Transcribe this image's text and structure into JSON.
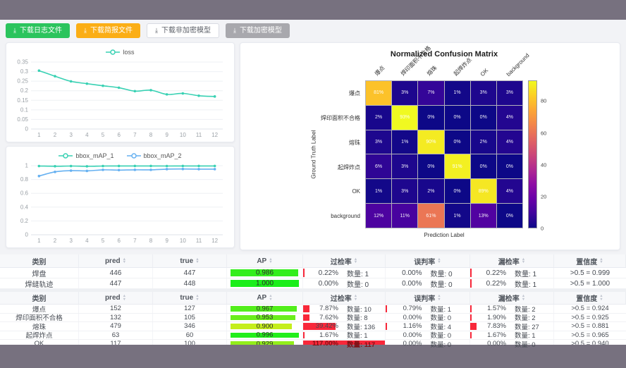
{
  "toolbar": {
    "buttons": [
      {
        "label": "下载日志文件",
        "style": "green",
        "icon": "download-icon"
      },
      {
        "label": "下载简报文件",
        "style": "orange",
        "icon": "download-icon"
      },
      {
        "label": "下载非加密模型",
        "style": "plain",
        "icon": "download-icon"
      },
      {
        "label": "下载加密模型",
        "style": "gray",
        "icon": "download-icon"
      }
    ]
  },
  "chart_data": [
    {
      "id": "loss",
      "type": "line",
      "x": [
        "1",
        "2",
        "3",
        "4",
        "5",
        "6",
        "7",
        "8",
        "9",
        "10",
        "11",
        "12"
      ],
      "series": [
        {
          "name": "loss",
          "color": "#38d1b3",
          "values": [
            0.305,
            0.276,
            0.249,
            0.237,
            0.226,
            0.216,
            0.198,
            0.203,
            0.181,
            0.186,
            0.174,
            0.17
          ]
        }
      ],
      "ytick_values": [
        0,
        0.05,
        0.1,
        0.15,
        0.2,
        0.25,
        0.3,
        0.35
      ],
      "ytick_labels": [
        "0",
        "0.05",
        "0.1",
        "0.15",
        "0.2",
        "0.25",
        "0.3",
        "0.35"
      ],
      "ymax": 0.35,
      "grid": true,
      "legend_position": "top"
    },
    {
      "id": "bbox_map",
      "type": "line",
      "x": [
        "1",
        "2",
        "3",
        "4",
        "5",
        "6",
        "7",
        "8",
        "9",
        "10",
        "11",
        "12"
      ],
      "series": [
        {
          "name": "bbox_mAP_1",
          "color": "#38d1b3",
          "values": [
            0.995,
            0.992,
            0.995,
            0.991,
            0.995,
            0.996,
            0.996,
            0.996,
            0.995,
            0.996,
            0.996,
            0.996
          ]
        },
        {
          "name": "bbox_mAP_2",
          "color": "#66b1f1",
          "values": [
            0.85,
            0.91,
            0.928,
            0.924,
            0.94,
            0.936,
            0.94,
            0.94,
            0.95,
            0.952,
            0.95,
            0.95
          ]
        }
      ],
      "ytick_values": [
        0,
        0.2,
        0.4,
        0.6,
        0.8,
        1
      ],
      "ytick_labels": [
        "0",
        "0.2",
        "0.4",
        "0.6",
        "0.8",
        "1"
      ],
      "ymax": 1,
      "grid": true,
      "legend_position": "top"
    },
    {
      "id": "confusion_matrix",
      "type": "heatmap",
      "title": "Normalized Confusion Matrix",
      "xlabel": "Prediction Label",
      "ylabel": "Ground Truth Label",
      "labels": [
        "爆点",
        "焊印面积不合格",
        "熔珠",
        "起焊炸点",
        "OK",
        "background"
      ],
      "matrix_pct": [
        [
          81,
          3,
          7,
          1,
          3,
          3
        ],
        [
          2,
          93,
          0,
          0,
          0,
          4
        ],
        [
          3,
          1,
          90,
          0,
          2,
          4
        ],
        [
          6,
          3,
          0,
          91,
          0,
          0
        ],
        [
          1,
          3,
          2,
          0,
          89,
          4
        ],
        [
          12,
          11,
          61,
          1,
          13,
          0
        ]
      ],
      "colorbar_ticks": [
        0,
        20,
        40,
        60,
        80
      ],
      "colormap": "plasma",
      "vmax": 93
    }
  ],
  "tables": [
    {
      "headers": [
        {
          "key": "category",
          "label": "类别",
          "sortable": false
        },
        {
          "key": "pred",
          "label": "pred",
          "sortable": true
        },
        {
          "key": "true",
          "label": "true",
          "sortable": true
        },
        {
          "key": "ap",
          "label": "AP",
          "sortable": true
        },
        {
          "key": "overkill",
          "label": "过检率",
          "sortable": true
        },
        {
          "key": "misjudge",
          "label": "误判率",
          "sortable": true
        },
        {
          "key": "miss",
          "label": "漏检率",
          "sortable": true
        },
        {
          "key": "confidence",
          "label": "置信度",
          "sortable": true
        }
      ],
      "rows": [
        {
          "name": "焊盘",
          "pred": "446",
          "true": "447",
          "ap": "0.986",
          "overkill": {
            "pct": "0.22%",
            "count": "数量: 1",
            "value": 0.22
          },
          "misjudge": {
            "pct": "0.00%",
            "count": "数量: 0",
            "value": 0
          },
          "miss": {
            "pct": "0.22%",
            "count": "数量: 1",
            "value": 0.22
          },
          "confidence": ">0.5 = 0.999"
        },
        {
          "name": "焊缝轨迹",
          "pred": "447",
          "true": "448",
          "ap": "1.000",
          "overkill": {
            "pct": "0.00%",
            "count": "数量: 0",
            "value": 0
          },
          "misjudge": {
            "pct": "0.00%",
            "count": "数量: 0",
            "value": 0
          },
          "miss": {
            "pct": "0.22%",
            "count": "数量: 1",
            "value": 0.22
          },
          "confidence": ">0.5 = 1.000"
        }
      ]
    },
    {
      "headers": [
        {
          "key": "category",
          "label": "类别",
          "sortable": false
        },
        {
          "key": "pred",
          "label": "pred",
          "sortable": true
        },
        {
          "key": "true",
          "label": "true",
          "sortable": true
        },
        {
          "key": "ap",
          "label": "AP",
          "sortable": true
        },
        {
          "key": "overkill",
          "label": "过检率",
          "sortable": true
        },
        {
          "key": "misjudge",
          "label": "误判率",
          "sortable": true
        },
        {
          "key": "miss",
          "label": "漏检率",
          "sortable": true
        },
        {
          "key": "confidence",
          "label": "置信度",
          "sortable": true
        }
      ],
      "rows": [
        {
          "name": "爆点",
          "pred": "152",
          "true": "127",
          "ap": "0.967",
          "overkill": {
            "pct": "7.87%",
            "count": "数量: 10",
            "value": 7.87
          },
          "misjudge": {
            "pct": "0.79%",
            "count": "数量: 1",
            "value": 0.79
          },
          "miss": {
            "pct": "1.57%",
            "count": "数量: 2",
            "value": 1.57
          },
          "confidence": ">0.5 = 0.924"
        },
        {
          "name": "焊印面积不合格",
          "pred": "132",
          "true": "105",
          "ap": "0.953",
          "overkill": {
            "pct": "7.62%",
            "count": "数量: 8",
            "value": 7.62
          },
          "misjudge": {
            "pct": "0.00%",
            "count": "数量: 0",
            "value": 0
          },
          "miss": {
            "pct": "1.90%",
            "count": "数量: 2",
            "value": 1.9
          },
          "confidence": ">0.5 = 0.925"
        },
        {
          "name": "熔珠",
          "pred": "479",
          "true": "346",
          "ap": "0.900",
          "overkill": {
            "pct": "39.42%",
            "count": "数量: 136",
            "value": 39.42
          },
          "misjudge": {
            "pct": "1.16%",
            "count": "数量: 4",
            "value": 1.16
          },
          "miss": {
            "pct": "7.83%",
            "count": "数量: 27",
            "value": 7.83
          },
          "confidence": ">0.5 = 0.881"
        },
        {
          "name": "起焊炸点",
          "pred": "63",
          "true": "60",
          "ap": "0.996",
          "overkill": {
            "pct": "1.67%",
            "count": "数量: 1",
            "value": 1.67
          },
          "misjudge": {
            "pct": "0.00%",
            "count": "数量: 0",
            "value": 0
          },
          "miss": {
            "pct": "1.67%",
            "count": "数量: 1",
            "value": 1.67
          },
          "confidence": ">0.5 = 0.965"
        },
        {
          "name": "OK",
          "pred": "117",
          "true": "100",
          "ap": "0.929",
          "overkill": {
            "pct": "117.00%",
            "count": "数量: 117",
            "value": 117
          },
          "misjudge": {
            "pct": "0.00%",
            "count": "数量: 0",
            "value": 0
          },
          "miss": {
            "pct": "0.00%",
            "count": "数量: 0",
            "value": 0
          },
          "confidence": ">0.5 = 0.940"
        }
      ]
    }
  ]
}
